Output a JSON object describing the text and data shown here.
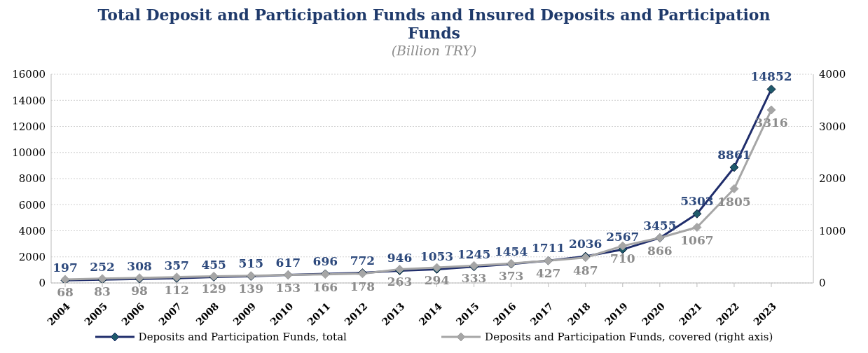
{
  "chart_data": {
    "type": "line",
    "title": "Total Deposit and Participation Funds and Insured Deposits and Participation Funds",
    "subtitle": "(Billion TRY)",
    "categories": [
      "2004",
      "2005",
      "2006",
      "2007",
      "2008",
      "2009",
      "2010",
      "2011",
      "2012",
      "2013",
      "2014",
      "2015",
      "2016",
      "2017",
      "2018",
      "2019",
      "2020",
      "2021",
      "2022",
      "2023"
    ],
    "series": [
      {
        "name": "Deposits and Participation Funds, total",
        "color": "#1f2d6b",
        "values": [
          197,
          252,
          308,
          357,
          455,
          515,
          617,
          696,
          772,
          946,
          1053,
          1245,
          1454,
          1711,
          2036,
          2567,
          3455,
          5303,
          8861,
          14852
        ]
      },
      {
        "name": "Deposits and Participation Funds, covered (right axis)",
        "color": "#a6a6a6",
        "axis": "y2",
        "values": [
          68,
          83,
          98,
          112,
          129,
          139,
          153,
          166,
          178,
          263,
          294,
          333,
          373,
          427,
          487,
          710,
          866,
          1067,
          1805,
          3316
        ]
      }
    ],
    "ylim": [
      0,
      16000
    ],
    "yticks": [
      0,
      2000,
      4000,
      6000,
      8000,
      10000,
      12000,
      14000,
      16000
    ],
    "y2lim": [
      0,
      4000
    ],
    "y2ticks": [
      0,
      1000,
      2000,
      3000,
      4000
    ],
    "grid": "y",
    "legend": "bottom",
    "marker": "diamond",
    "line_style": "solid",
    "data_labels": true
  }
}
